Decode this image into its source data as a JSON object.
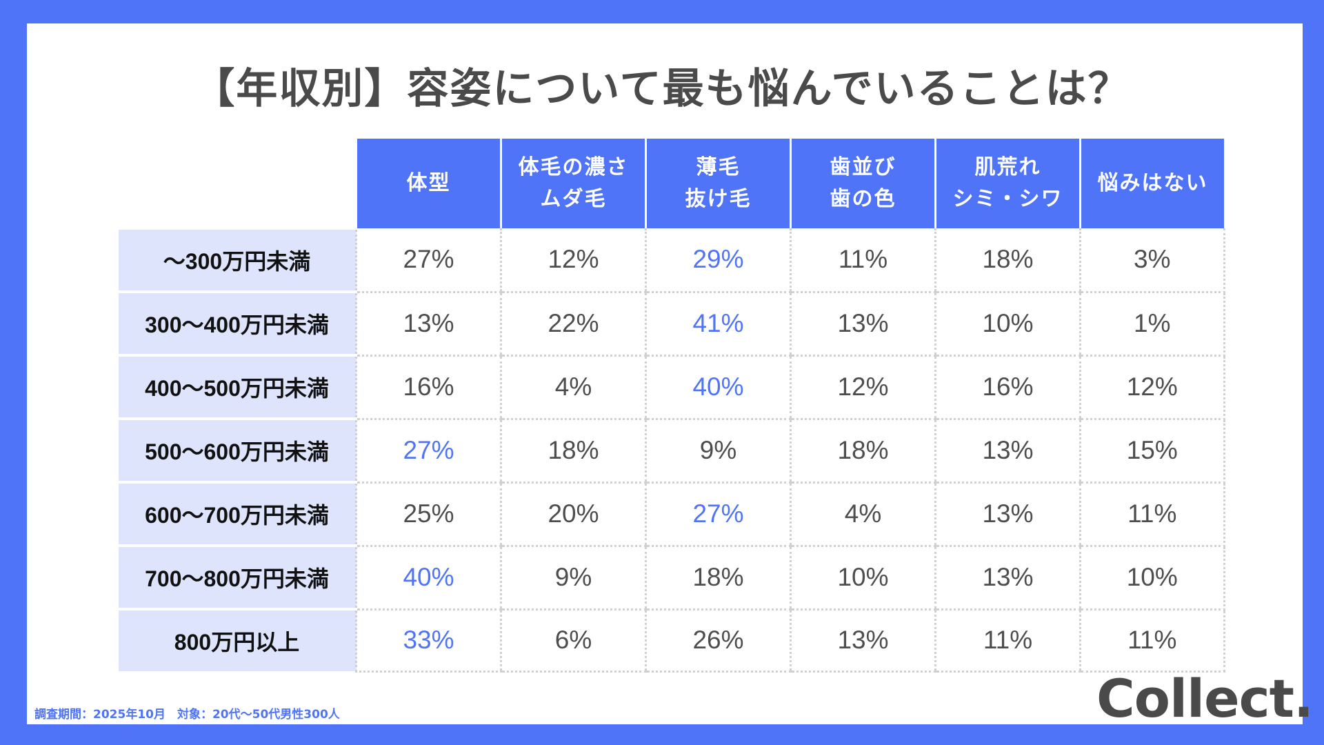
{
  "title": "【年収別】容姿について最も悩んでいることは？",
  "footnote": "調査期間：2025年10月　対象：20代～50代男性300人",
  "logo": "Collect.",
  "colors": {
    "accent": "#4f74f7",
    "row_header_bg": "#dde4fc",
    "text": "#4d4d4d"
  },
  "chart_data": {
    "type": "table",
    "title": "【年収別】容姿について最も悩んでいることは？",
    "columns": [
      {
        "lines": [
          "体型"
        ]
      },
      {
        "lines": [
          "体毛の濃さ",
          "ムダ毛"
        ]
      },
      {
        "lines": [
          "薄毛",
          "抜け毛"
        ]
      },
      {
        "lines": [
          "歯並び",
          "歯の色"
        ]
      },
      {
        "lines": [
          "肌荒れ",
          "シミ・シワ"
        ]
      },
      {
        "lines": [
          "悩みはない"
        ]
      }
    ],
    "rows": [
      {
        "label": "～300万円未満",
        "values": [
          "27%",
          "12%",
          "29%",
          "11%",
          "18%",
          "3%"
        ],
        "highlight": 2
      },
      {
        "label": "300～400万円未満",
        "values": [
          "13%",
          "22%",
          "41%",
          "13%",
          "10%",
          "1%"
        ],
        "highlight": 2
      },
      {
        "label": "400～500万円未満",
        "values": [
          "16%",
          "4%",
          "40%",
          "12%",
          "16%",
          "12%"
        ],
        "highlight": 2
      },
      {
        "label": "500～600万円未満",
        "values": [
          "27%",
          "18%",
          "9%",
          "18%",
          "13%",
          "15%"
        ],
        "highlight": 0
      },
      {
        "label": "600～700万円未満",
        "values": [
          "25%",
          "20%",
          "27%",
          "4%",
          "13%",
          "11%"
        ],
        "highlight": 2
      },
      {
        "label": "700～800万円未満",
        "values": [
          "40%",
          "9%",
          "18%",
          "10%",
          "13%",
          "10%"
        ],
        "highlight": 0
      },
      {
        "label": "800万円以上",
        "values": [
          "33%",
          "6%",
          "26%",
          "13%",
          "11%",
          "11%"
        ],
        "highlight": 0
      }
    ]
  }
}
